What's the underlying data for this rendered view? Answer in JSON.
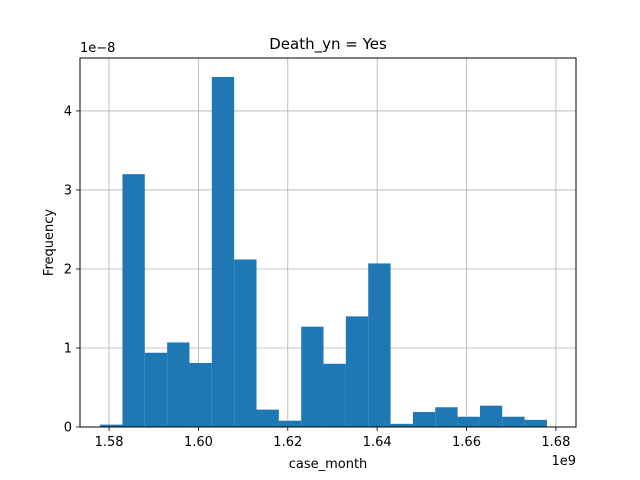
{
  "chart_data": {
    "type": "bar",
    "title": "Death_yn = Yes",
    "xlabel": "case_month",
    "ylabel": "Frequency",
    "x_offset_text": "1e9",
    "y_offset_text": "1e−8",
    "xlim": [
      1.5735,
      1.6845
    ],
    "ylim": [
      0,
      4.67
    ],
    "x_ticks": [
      1.58,
      1.6,
      1.62,
      1.64,
      1.66,
      1.68
    ],
    "x_tick_labels": [
      "1.58",
      "1.60",
      "1.62",
      "1.64",
      "1.66",
      "1.68"
    ],
    "y_ticks": [
      0,
      1,
      2,
      3,
      4
    ],
    "y_tick_labels": [
      "0",
      "1",
      "2",
      "3",
      "4"
    ],
    "grid": true,
    "bar_color": "#1f77b4",
    "bins": [
      {
        "x0": 1.578,
        "x1": 1.583,
        "value": 0.03
      },
      {
        "x0": 1.583,
        "x1": 1.588,
        "value": 3.2
      },
      {
        "x0": 1.588,
        "x1": 1.593,
        "value": 0.94
      },
      {
        "x0": 1.593,
        "x1": 1.598,
        "value": 1.07
      },
      {
        "x0": 1.598,
        "x1": 1.603,
        "value": 0.81
      },
      {
        "x0": 1.603,
        "x1": 1.608,
        "value": 4.43
      },
      {
        "x0": 1.608,
        "x1": 1.613,
        "value": 2.12
      },
      {
        "x0": 1.613,
        "x1": 1.618,
        "value": 0.22
      },
      {
        "x0": 1.618,
        "x1": 1.623,
        "value": 0.08
      },
      {
        "x0": 1.623,
        "x1": 1.628,
        "value": 1.27
      },
      {
        "x0": 1.628,
        "x1": 1.633,
        "value": 0.8
      },
      {
        "x0": 1.633,
        "x1": 1.638,
        "value": 1.4
      },
      {
        "x0": 1.638,
        "x1": 1.643,
        "value": 2.07
      },
      {
        "x0": 1.643,
        "x1": 1.648,
        "value": 0.04
      },
      {
        "x0": 1.648,
        "x1": 1.653,
        "value": 0.19
      },
      {
        "x0": 1.653,
        "x1": 1.658,
        "value": 0.25
      },
      {
        "x0": 1.658,
        "x1": 1.663,
        "value": 0.13
      },
      {
        "x0": 1.663,
        "x1": 1.668,
        "value": 0.27
      },
      {
        "x0": 1.668,
        "x1": 1.673,
        "value": 0.13
      },
      {
        "x0": 1.673,
        "x1": 1.678,
        "value": 0.09
      }
    ]
  }
}
